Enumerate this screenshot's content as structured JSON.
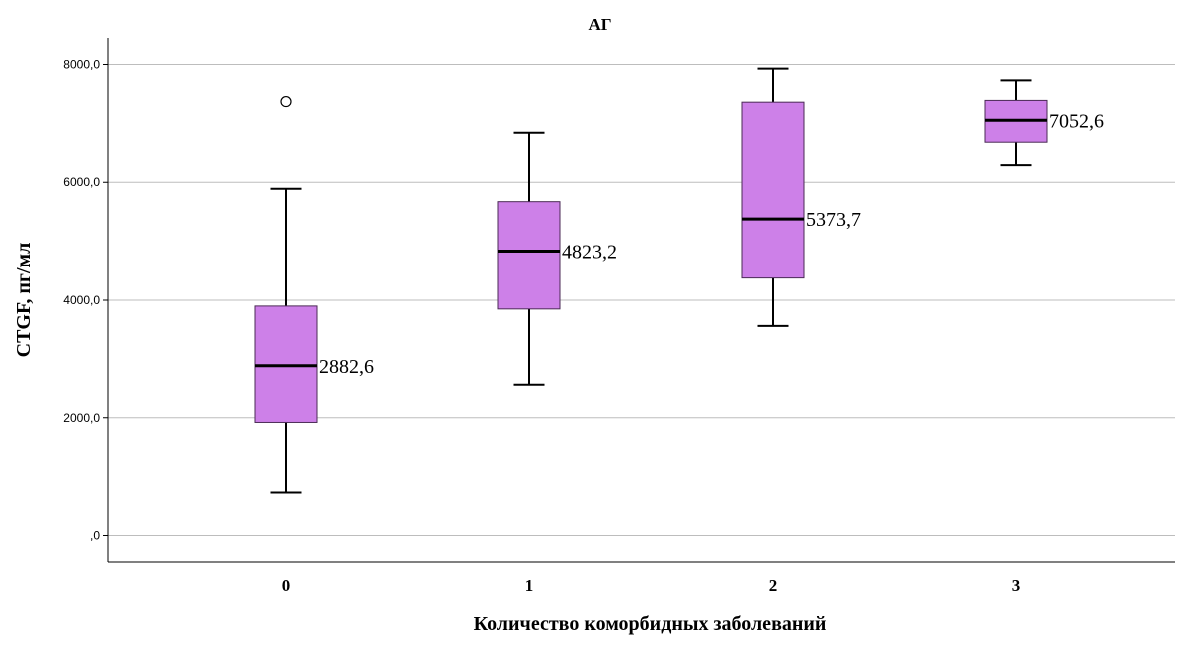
{
  "colors": {
    "box_fill": "#cd80e8",
    "box_stroke": "#4a2a55",
    "grid": "#bdbdbd",
    "axis": "#000000",
    "median": "#000000"
  },
  "chart_data": {
    "type": "boxplot",
    "title": "АГ",
    "xlabel": "Количество коморбидных заболеваний",
    "ylabel": "CTGF, пг/мл",
    "ylim": [
      -450,
      8450
    ],
    "yticks": [
      0,
      2000,
      4000,
      6000,
      8000
    ],
    "ytick_labels": [
      ",0",
      "2000,0",
      "4000,0",
      "6000,0",
      "8000,0"
    ],
    "grid": true,
    "categories": [
      "0",
      "1",
      "2",
      "3"
    ],
    "boxes": [
      {
        "category": "0",
        "whisker_low": 730,
        "q1": 1920,
        "median": 2882.6,
        "q3": 3900,
        "whisker_high": 5890,
        "outliers": [
          7370
        ],
        "median_label": "2882,6"
      },
      {
        "category": "1",
        "whisker_low": 2560,
        "q1": 3850,
        "median": 4823.2,
        "q3": 5670,
        "whisker_high": 6840,
        "outliers": [],
        "median_label": "4823,2"
      },
      {
        "category": "2",
        "whisker_low": 3560,
        "q1": 4380,
        "median": 5373.7,
        "q3": 7360,
        "whisker_high": 7930,
        "outliers": [],
        "median_label": "5373,7"
      },
      {
        "category": "3",
        "whisker_low": 6290,
        "q1": 6680,
        "median": 7052.6,
        "q3": 7390,
        "whisker_high": 7730,
        "outliers": [],
        "median_label": "7052,6"
      }
    ]
  }
}
